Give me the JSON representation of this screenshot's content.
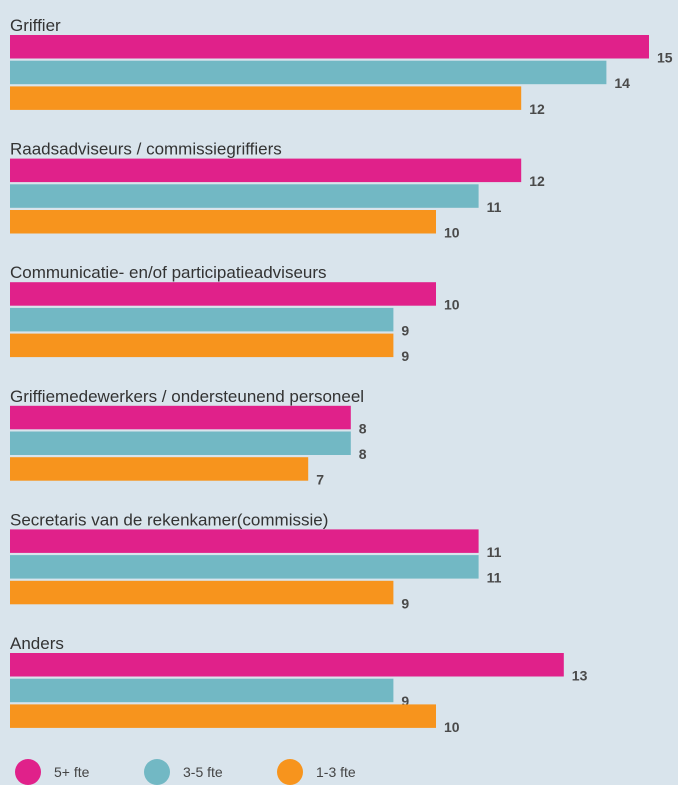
{
  "chart_data": {
    "type": "bar",
    "orientation": "horizontal",
    "categories": [
      "Griffier",
      "Raadsadviseurs / commissiegriffiers",
      "Communicatie- en/of participatieadviseurs",
      "Griffiemedewerkers / ondersteunend personeel",
      "Secretaris van de rekenkamer(commissie)",
      "Anders"
    ],
    "series": [
      {
        "name": "5+ fte",
        "color": "#e0218a",
        "values": [
          15,
          12,
          10,
          8,
          11,
          13
        ]
      },
      {
        "name": "3-5 fte",
        "color": "#72b8c4",
        "values": [
          14,
          11,
          9,
          8,
          11,
          9
        ]
      },
      {
        "name": "1-3 fte",
        "color": "#f7941d",
        "values": [
          12,
          10,
          9,
          7,
          9,
          10
        ]
      }
    ],
    "grid": false,
    "legend_position": "bottom-left"
  }
}
